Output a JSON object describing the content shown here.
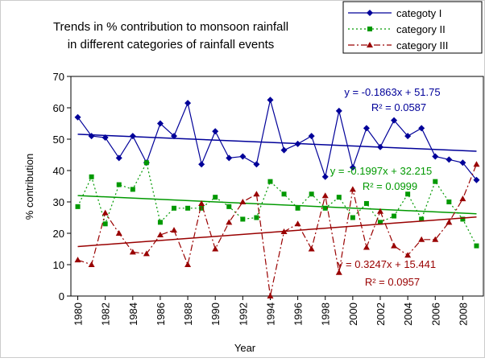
{
  "chart_data": {
    "type": "line",
    "title": [
      "Trends in % contribution to monsoon rainfall",
      "in different categories of rainfall events"
    ],
    "x_label": "Year",
    "y_label": "% contribution",
    "x": [
      1980,
      1981,
      1982,
      1983,
      1984,
      1985,
      1986,
      1987,
      1988,
      1989,
      1990,
      1991,
      1992,
      1993,
      1994,
      1995,
      1996,
      1997,
      1998,
      1999,
      2000,
      2001,
      2002,
      2003,
      2004,
      2005,
      2006,
      2007,
      2008,
      2009
    ],
    "xlim": [
      1979.5,
      2009.5
    ],
    "xticks": [
      1980,
      1982,
      1984,
      1986,
      1988,
      1990,
      1992,
      1994,
      1996,
      1998,
      2000,
      2002,
      2004,
      2006,
      2008
    ],
    "ylim": [
      0,
      70
    ],
    "yticks": [
      0,
      10,
      20,
      30,
      40,
      50,
      60,
      70
    ],
    "grid": false,
    "legend": "top-right",
    "series": [
      {
        "name": "categoty I",
        "color": "#000099",
        "marker": "diamond",
        "dash": "solid",
        "values": [
          57,
          51,
          50.5,
          44,
          51,
          42.5,
          55,
          51,
          61.5,
          42,
          52.5,
          44,
          44.5,
          42,
          62.5,
          46.5,
          48.5,
          51,
          38,
          59,
          41,
          53.5,
          47.5,
          56,
          51,
          53.5,
          44.5,
          43.5,
          42.5,
          37
        ],
        "trend": {
          "slope": -0.1863,
          "intercept": 51.75,
          "equation": "y = -0.1863x + 51.75",
          "r2": "R² = 0.0587"
        }
      },
      {
        "name": "category II",
        "color": "#009900",
        "marker": "square",
        "dash": "dot",
        "values": [
          28.5,
          38,
          23,
          35.5,
          34,
          42.5,
          23.5,
          28,
          28,
          28,
          31.5,
          28.5,
          24.5,
          25,
          36.5,
          32.5,
          28,
          32.5,
          28,
          31.5,
          25,
          29.5,
          23.5,
          25.5,
          32.5,
          24.5,
          36.5,
          30,
          24.5,
          16
        ],
        "trend": {
          "slope": -0.1997,
          "intercept": 32.215,
          "equation": "y = -0.1997x + 32.215",
          "r2": "R² = 0.0999"
        }
      },
      {
        "name": "category III",
        "color": "#990000",
        "marker": "triangle",
        "dash": "dashdot",
        "values": [
          11.5,
          10,
          26.5,
          20,
          14,
          13.5,
          19.5,
          21,
          10,
          29.5,
          15,
          23.5,
          30,
          32.5,
          0,
          20.5,
          23,
          15,
          32,
          7.5,
          34,
          15.5,
          27,
          16,
          13,
          18,
          18,
          23.5,
          31,
          42
        ],
        "trend": {
          "slope": 0.3247,
          "intercept": 15.441,
          "equation": "y = 0.3247x + 15.441",
          "r2": "R² = 0.0957"
        }
      }
    ]
  }
}
